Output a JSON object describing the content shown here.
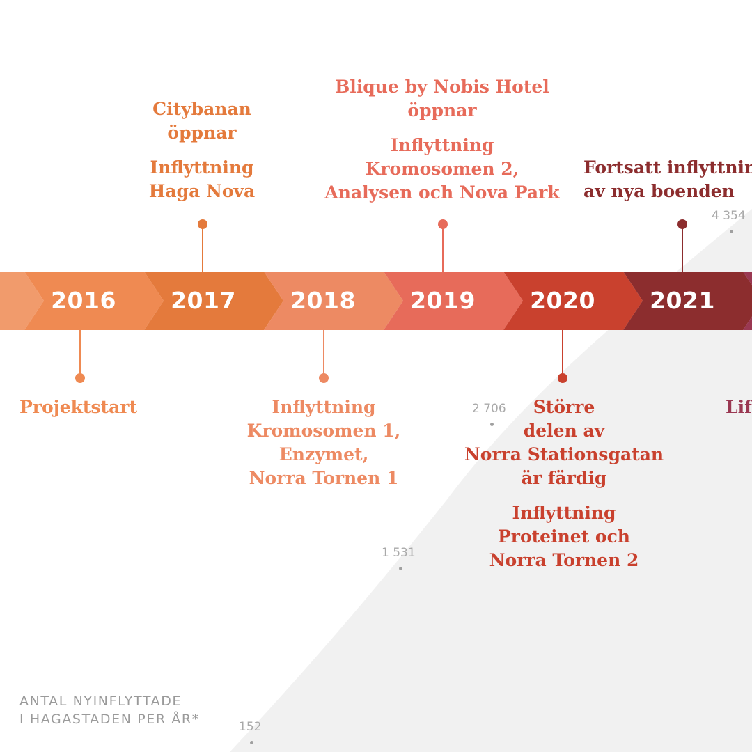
{
  "colors": {
    "y2016": "#ef8a52",
    "y2017": "#e47a3c",
    "y2018": "#ed8a63",
    "y2019": "#e76b5a",
    "y2020": "#c9412e",
    "y2021": "#8c2d2e",
    "y2022": "#9a3852",
    "area": "#f1f1f1"
  },
  "timeline": {
    "years": [
      {
        "label": "2016",
        "color": "#ef8a52"
      },
      {
        "label": "2017",
        "color": "#e47a3c"
      },
      {
        "label": "2018",
        "color": "#ed8a63"
      },
      {
        "label": "2019",
        "color": "#e76b5a"
      },
      {
        "label": "2020",
        "color": "#c9412e"
      },
      {
        "label": "2021",
        "color": "#8c2d2e"
      }
    ]
  },
  "events_above": {
    "y2017": {
      "title1": "Citybanan\nöppnar",
      "title2": "Inflyttning\nHaga Nova"
    },
    "y2019": {
      "title1": "Blique by Nobis Hotel\nöppnar",
      "title2": "Inflyttning\nKromosomen 2,\nAnalysen och Nova Park"
    },
    "y2021": {
      "title1": "Fortsatt inflyttning\nav nya boenden"
    }
  },
  "events_below": {
    "y2016": {
      "title1": "Projektstart"
    },
    "y2018": {
      "title1": "Inflyttning\nKromosomen 1,\nEnzymet,\nNorra Tornen 1"
    },
    "y2020": {
      "title1": "Större\ndelen av\nNorra Stationsgatan\när färdig",
      "title2": "Inflyttning\nProteinet och\nNorra Tornen 2"
    },
    "y2022": {
      "title1": "Lif"
    }
  },
  "chart_data": {
    "type": "area",
    "title": "",
    "ylabel": "ANTAL NYINFLYTTADE\nI HAGASTADEN PER ÅR*",
    "x": [
      "2017",
      "2018",
      "2019",
      "2020"
    ],
    "values": [
      152,
      1531,
      2706,
      4354
    ],
    "value_labels": [
      "152",
      "1 531",
      "2 706",
      "4 354"
    ]
  }
}
